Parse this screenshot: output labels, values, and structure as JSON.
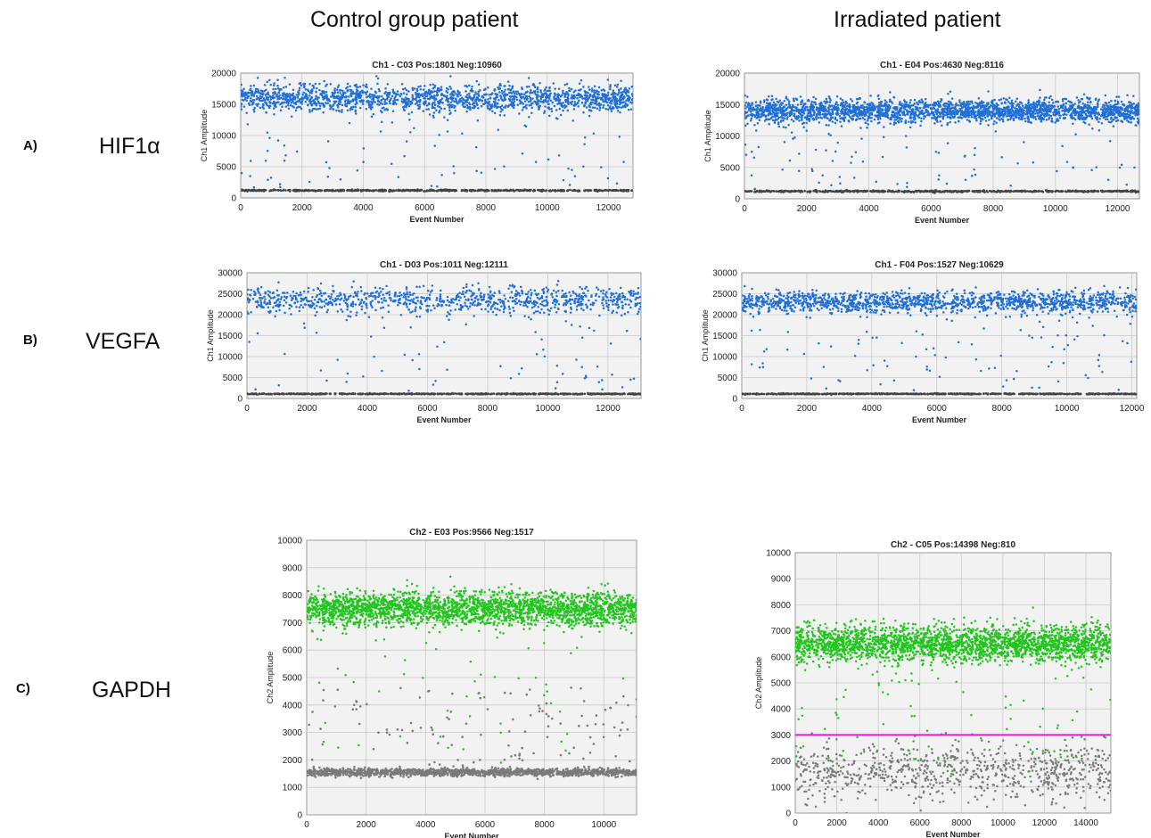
{
  "headers": {
    "control": "Control group patient",
    "irradiated": "Irradiated patient"
  },
  "rows": [
    {
      "tag": "A)",
      "gene": "HIF1α"
    },
    {
      "tag": "B)",
      "gene": "VEGFA"
    },
    {
      "tag": "C)",
      "gene": "GAPDH"
    }
  ],
  "colors": {
    "ch1_positive": "#1f6fd6",
    "ch2_positive": "#22c51e",
    "negative": "#444444",
    "ch2_negative": "#7a7a7a",
    "threshold": "#e020d0",
    "plot_bg": "#f2f2f2",
    "grid": "#c8c8c8"
  },
  "chart_data": [
    {
      "type": "scatter",
      "title": "Ch1 - C03 Pos:1801 Neg:10960",
      "xlabel": "Event Number",
      "ylabel": "Ch1 Amplitude",
      "xlim": [
        0,
        12800
      ],
      "ylim": [
        0,
        20000
      ],
      "xticks": [
        0,
        2000,
        4000,
        6000,
        8000,
        10000,
        12000
      ],
      "yticks": [
        0,
        5000,
        10000,
        15000,
        20000
      ],
      "grid": true,
      "series": [
        {
          "role": "positive",
          "color": "ch1_positive",
          "count": 1801,
          "center": 16000,
          "spread": 1100,
          "scatter_fraction": 0.05
        },
        {
          "role": "negative",
          "color": "negative",
          "count": 10960,
          "center": 1200,
          "spread": 60
        }
      ]
    },
    {
      "type": "scatter",
      "title": "Ch1 - E04 Pos:4630 Neg:8116",
      "xlabel": "Event Number",
      "ylabel": "Ch1 Amplitude",
      "xlim": [
        0,
        12700
      ],
      "ylim": [
        0,
        20000
      ],
      "xticks": [
        0,
        2000,
        4000,
        6000,
        8000,
        10000,
        12000
      ],
      "yticks": [
        0,
        5000,
        10000,
        15000,
        20000
      ],
      "grid": true,
      "series": [
        {
          "role": "positive",
          "color": "ch1_positive",
          "count": 4630,
          "center": 14000,
          "spread": 900,
          "scatter_fraction": 0.04
        },
        {
          "role": "negative",
          "color": "negative",
          "count": 8116,
          "center": 1200,
          "spread": 60
        }
      ]
    },
    {
      "type": "scatter",
      "title": "Ch1 - D03 Pos:1011 Neg:12111",
      "xlabel": "Event Number",
      "ylabel": "Ch1 Amplitude",
      "xlim": [
        0,
        13100
      ],
      "ylim": [
        0,
        30000
      ],
      "xticks": [
        0,
        2000,
        4000,
        6000,
        8000,
        10000,
        12000
      ],
      "yticks": [
        0,
        5000,
        10000,
        15000,
        20000,
        25000,
        30000
      ],
      "grid": true,
      "series": [
        {
          "role": "positive",
          "color": "ch1_positive",
          "count": 1011,
          "center": 23500,
          "spread": 1600,
          "scatter_fraction": 0.07
        },
        {
          "role": "negative",
          "color": "negative",
          "count": 12111,
          "center": 1100,
          "spread": 60
        }
      ]
    },
    {
      "type": "scatter",
      "title": "Ch1 - F04 Pos:1527 Neg:10629",
      "xlabel": "Event Number",
      "ylabel": "Ch1 Amplitude",
      "xlim": [
        0,
        12150
      ],
      "ylim": [
        0,
        30000
      ],
      "xticks": [
        0,
        2000,
        4000,
        6000,
        8000,
        10000,
        12000
      ],
      "yticks": [
        0,
        5000,
        10000,
        15000,
        20000,
        25000,
        30000
      ],
      "grid": true,
      "series": [
        {
          "role": "positive",
          "color": "ch1_positive",
          "count": 1527,
          "center": 23000,
          "spread": 1300,
          "scatter_fraction": 0.07
        },
        {
          "role": "negative",
          "color": "negative",
          "count": 10629,
          "center": 1100,
          "spread": 60
        }
      ]
    },
    {
      "type": "scatter",
      "title": "Ch2 - E03 Pos:9566 Neg:1517",
      "xlabel": "Event Number",
      "ylabel": "Ch2 Amplitude",
      "xlim": [
        0,
        11100
      ],
      "ylim": [
        0,
        10000
      ],
      "xticks": [
        0,
        2000,
        4000,
        6000,
        8000,
        10000
      ],
      "yticks": [
        0,
        1000,
        2000,
        3000,
        4000,
        5000,
        6000,
        7000,
        8000,
        9000,
        10000
      ],
      "grid": true,
      "series": [
        {
          "role": "positive",
          "color": "ch2_positive",
          "count": 9566,
          "center": 7500,
          "spread": 300,
          "scatter_fraction": 0.03
        },
        {
          "role": "negative",
          "color": "ch2_negative",
          "count": 1517,
          "center": 1550,
          "spread": 70,
          "scatter_fraction": 0.08
        }
      ]
    },
    {
      "type": "scatter",
      "title": "Ch2 - C05 Pos:14398 Neg:810",
      "xlabel": "Event Number",
      "ylabel": "Ch2 Amplitude",
      "xlim": [
        0,
        15200
      ],
      "ylim": [
        0,
        10000
      ],
      "xticks": [
        0,
        2000,
        4000,
        6000,
        8000,
        10000,
        12000,
        14000
      ],
      "yticks": [
        0,
        1000,
        2000,
        3000,
        4000,
        5000,
        6000,
        7000,
        8000,
        9000,
        10000
      ],
      "grid": true,
      "threshold": 3000,
      "series": [
        {
          "role": "positive",
          "color": "ch2_positive",
          "count": 14398,
          "center": 6500,
          "spread": 350,
          "scatter_fraction": 0.04
        },
        {
          "role": "negative",
          "color": "ch2_negative",
          "count": 810,
          "center": 1600,
          "spread": 550
        }
      ]
    }
  ]
}
